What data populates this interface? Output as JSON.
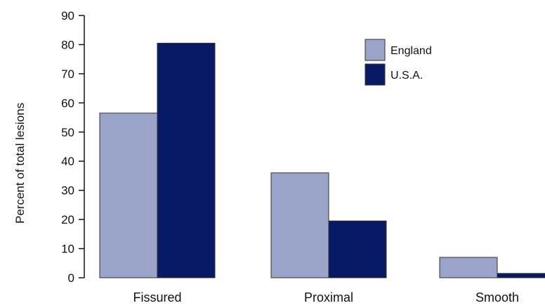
{
  "chart_data": {
    "type": "bar",
    "title": "",
    "xlabel": "",
    "ylabel": "Percent of total lesions",
    "categories": [
      "Fissured",
      "Proximal",
      "Smooth"
    ],
    "series": [
      {
        "name": "England",
        "values": [
          56.5,
          36,
          7
        ],
        "color": "#9aa3c8"
      },
      {
        "name": "U.S.A.",
        "values": [
          80.5,
          19.5,
          1.5
        ],
        "color": "#071a63"
      }
    ],
    "ylim": [
      0,
      90
    ],
    "yticks": [
      0,
      10,
      20,
      30,
      40,
      50,
      60,
      70,
      80,
      90
    ],
    "grid": false,
    "legend": "top-right"
  }
}
